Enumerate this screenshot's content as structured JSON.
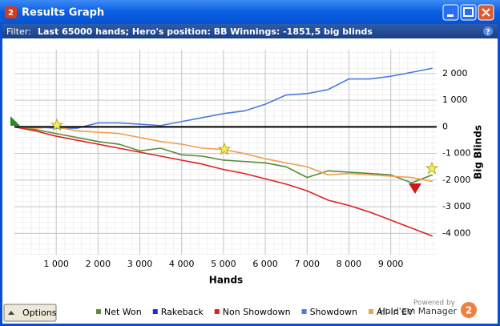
{
  "window": {
    "icon": "2",
    "title": "Results Graph"
  },
  "filter": {
    "label": "Filter:",
    "text": "Last 65000 hands; Hero's position: BB Winnings: -1851,5 big blinds"
  },
  "options_button": "Options",
  "branding": {
    "powered_by": "Powered by",
    "product": "Hold'em Manager",
    "logo": "2"
  },
  "chart_data": {
    "type": "line",
    "x_label": "Hands",
    "y_label": "Big Blinds",
    "x": [
      0,
      500,
      1000,
      1500,
      2000,
      2500,
      3000,
      3500,
      4000,
      4500,
      5000,
      5500,
      6000,
      6500,
      7000,
      7500,
      8000,
      8500,
      9000,
      9500,
      10000
    ],
    "series": [
      {
        "name": "Net Won",
        "color": "#5a8a3c",
        "values": [
          0,
          -100,
          -250,
          -400,
          -550,
          -650,
          -900,
          -800,
          -1050,
          -1100,
          -1250,
          -1300,
          -1350,
          -1500,
          -1900,
          -1650,
          -1700,
          -1750,
          -1800,
          -2100,
          -1800
        ]
      },
      {
        "name": "Rakeback",
        "color": "#1a2fd0",
        "values": [
          0,
          0,
          0,
          0,
          0,
          0,
          0,
          0,
          0,
          0,
          0,
          0,
          0,
          0,
          0,
          0,
          0,
          0,
          0,
          0,
          0
        ]
      },
      {
        "name": "Non Showdown",
        "color": "#e02020",
        "values": [
          0,
          -150,
          -350,
          -500,
          -650,
          -800,
          -950,
          -1100,
          -1250,
          -1400,
          -1600,
          -1750,
          -1950,
          -2150,
          -2400,
          -2750,
          -2950,
          -3200,
          -3500,
          -3800,
          -4100
        ]
      },
      {
        "name": "Showdown",
        "color": "#4a7ae0",
        "values": [
          0,
          0,
          -50,
          -50,
          150,
          150,
          100,
          50,
          200,
          350,
          500,
          600,
          850,
          1200,
          1250,
          1400,
          1800,
          1800,
          1900,
          2050,
          2200
        ]
      },
      {
        "name": "All-In EV",
        "color": "#f0a050",
        "values": [
          0,
          -50,
          0,
          -150,
          -200,
          -250,
          -400,
          -550,
          -650,
          -800,
          -850,
          -1000,
          -1200,
          -1350,
          -1500,
          -1800,
          -1750,
          -1800,
          -1850,
          -1900,
          -2050
        ]
      }
    ],
    "xlim": [
      0,
      10100
    ],
    "ylim": [
      -4800,
      2900
    ],
    "xticks": [
      {
        "value": 1000,
        "label": "1 000"
      },
      {
        "value": 2000,
        "label": "2 000"
      },
      {
        "value": 3000,
        "label": "3 000"
      },
      {
        "value": 4000,
        "label": "4 000"
      },
      {
        "value": 5000,
        "label": "5 000"
      },
      {
        "value": 6000,
        "label": "6 000"
      },
      {
        "value": 7000,
        "label": "7 000"
      },
      {
        "value": 8000,
        "label": "8 000"
      },
      {
        "value": 9000,
        "label": "9 000"
      }
    ],
    "yticks": [
      {
        "value": -4000,
        "label": "-4 000"
      },
      {
        "value": -3000,
        "label": "-3 000"
      },
      {
        "value": -2000,
        "label": "-2 000"
      },
      {
        "value": -1000,
        "label": "-1 000"
      },
      0,
      {
        "value": 1000,
        "label": "1 000"
      },
      {
        "value": 2000,
        "label": "2 000"
      }
    ],
    "grid": true
  }
}
